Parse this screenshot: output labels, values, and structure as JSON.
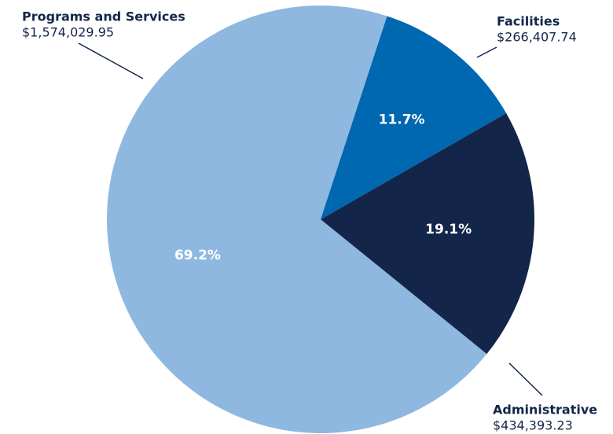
{
  "chart_data": {
    "type": "pie",
    "categories": [
      "Programs and Services",
      "Facilities",
      "Administrative"
    ],
    "values": [
      1574029.95,
      266407.74,
      434393.23
    ],
    "value_labels": [
      "$1,574,029.95",
      "$266,407.74",
      "$434,393.23"
    ],
    "percentages": [
      69.2,
      11.7,
      19.1
    ],
    "percentage_labels": [
      "69.2%",
      "11.7%",
      "19.1%"
    ],
    "colors": [
      "#8fb8e0",
      "#0067b1",
      "#14254a"
    ]
  }
}
